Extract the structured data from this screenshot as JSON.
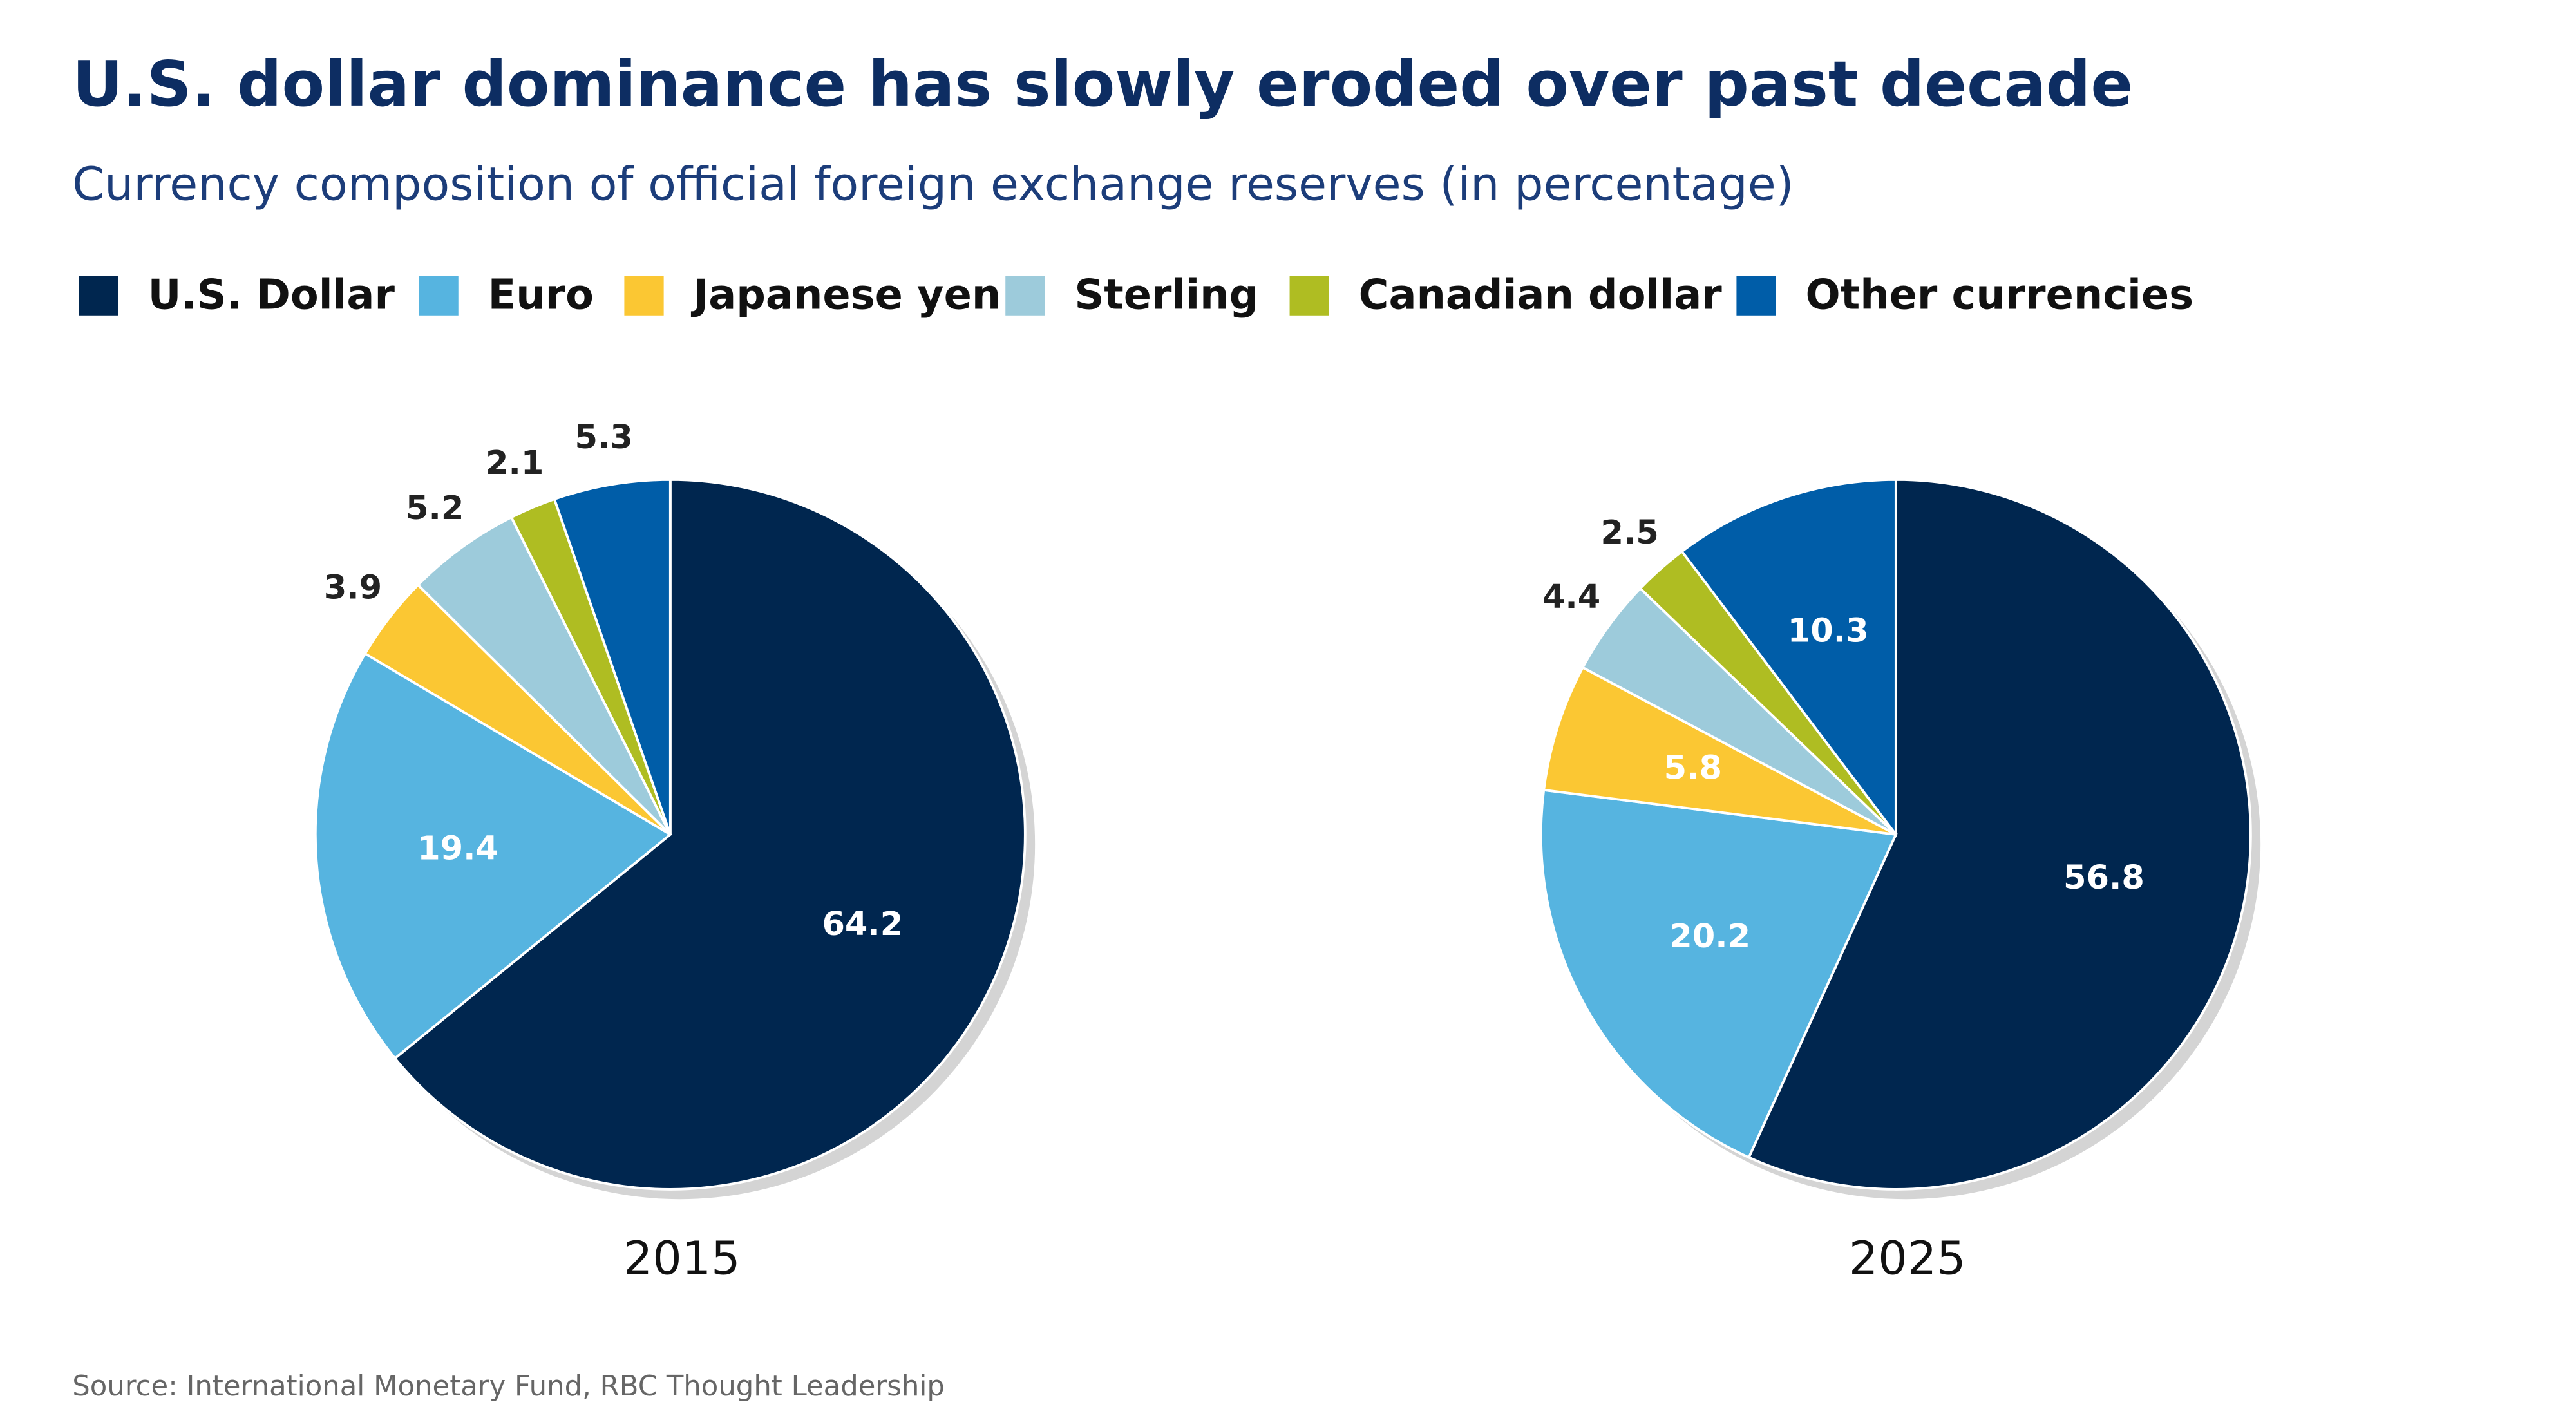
{
  "title": "U.S. dollar dominance has slowly eroded over past decade",
  "subtitle": "Currency composition of official foreign exchange reserves (in percentage)",
  "source": "Source: International Monetary Fund, RBC Thought Leadership",
  "chart_data": [
    {
      "type": "pie",
      "title": "2015",
      "categories": [
        "U.S. Dollar",
        "Euro",
        "Japanese yen",
        "Sterling",
        "Canadian dollar",
        "Other currencies"
      ],
      "colors": [
        "#00264f",
        "#56b4e0",
        "#fbc733",
        "#9dcbdb",
        "#afbd22",
        "#005da8"
      ],
      "values": [
        64.2,
        19.4,
        3.9,
        5.2,
        2.1,
        5.3
      ]
    },
    {
      "type": "pie",
      "title": "2025",
      "categories": [
        "U.S. Dollar",
        "Euro",
        "Japanese yen",
        "Sterling",
        "Canadian dollar",
        "Other currencies"
      ],
      "colors": [
        "#00264f",
        "#56b4e0",
        "#fbc733",
        "#9dcbdb",
        "#afbd22",
        "#005da8"
      ],
      "values": [
        56.8,
        20.2,
        5.8,
        4.4,
        2.5,
        10.3
      ]
    }
  ]
}
